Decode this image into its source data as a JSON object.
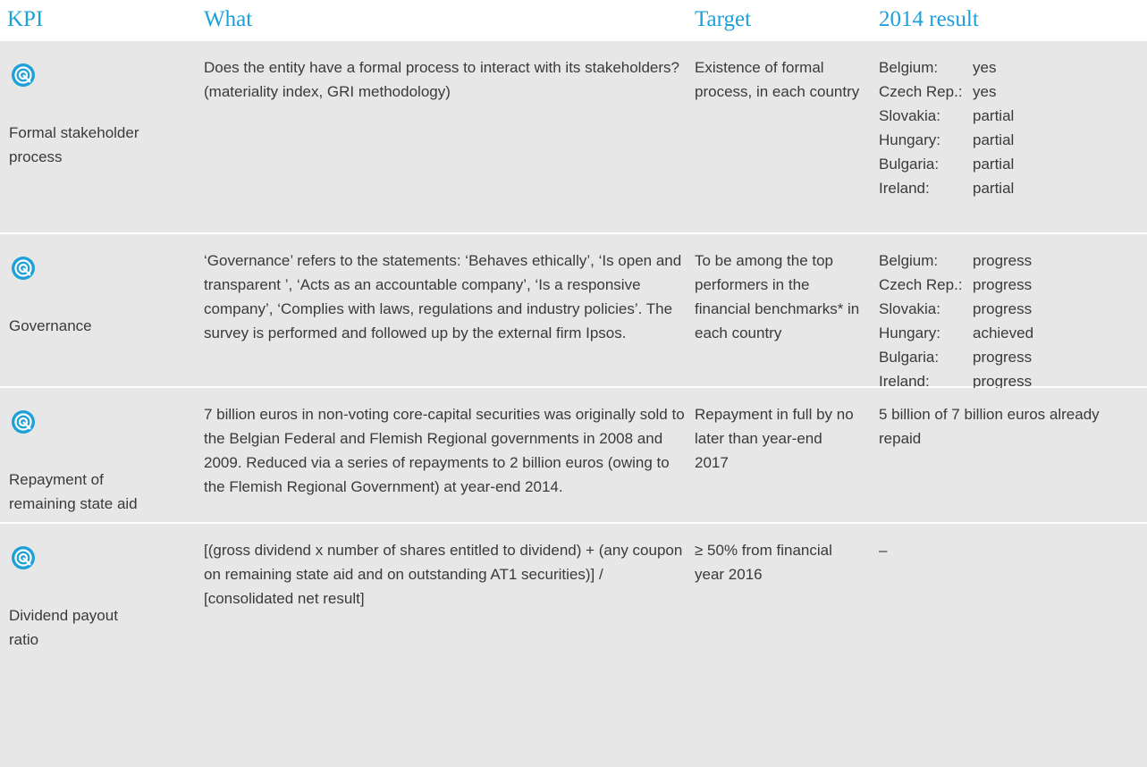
{
  "header": [
    "KPI",
    "What",
    "Target",
    "2014 result"
  ],
  "rows": [
    {
      "kpi": "Formal stakeholder process",
      "what": "Does the entity have a formal process to interact with its stakeholders? (materiality index, GRI methodology)",
      "target": "Existence of formal process, in each country",
      "result": [
        {
          "country": "Belgium:",
          "status": "yes"
        },
        {
          "country": "Czech Rep.:",
          "status": "yes"
        },
        {
          "country": "Slovakia:",
          "status": "partial"
        },
        {
          "country": "Hungary:",
          "status": "partial"
        },
        {
          "country": "Bulgaria:",
          "status": "partial"
        },
        {
          "country": "Ireland:",
          "status": "partial"
        }
      ]
    },
    {
      "kpi": "Governance",
      "what": "‘Governance’ refers to the statements: ‘Behaves ethically’, ‘Is open and transparent ’, ‘Acts as an accountable company’, ‘Is a responsive company’, ‘Complies with laws, regulations and industry policies’. The survey is performed and followed up by the external firm Ipsos.",
      "target": "To be among the top performers in the financial benchmarks* in each country",
      "result": [
        {
          "country": "Belgium:",
          "status": "progress"
        },
        {
          "country": "Czech Rep.:",
          "status": "progress"
        },
        {
          "country": "Slovakia:",
          "status": "progress"
        },
        {
          "country": "Hungary:",
          "status": "achieved"
        },
        {
          "country": "Bulgaria:",
          "status": "progress"
        },
        {
          "country": "Ireland:",
          "status": "progress"
        }
      ]
    },
    {
      "kpi": "Repayment of remaining state aid",
      "what": "7 billion euros in non-voting core-capital securities was originally sold to the Belgian Federal and Flemish Regional governments in 2008 and 2009. Reduced via a series of repayments to 2 billion euros (owing to the Flemish Regional Government) at year-end 2014.",
      "target": "Repayment in full by no later than year-end 2017",
      "result_text": "5 billion of 7 billion euros already repaid"
    },
    {
      "kpi": "Dividend payout ratio",
      "what": "[(gross dividend x number of shares entitled to dividend) + (any coupon on remaining state aid and on outstanding AT1 securities)] / [consolidated net result]",
      "target": "≥ 50% from financial year 2016",
      "result_text": "–"
    }
  ]
}
